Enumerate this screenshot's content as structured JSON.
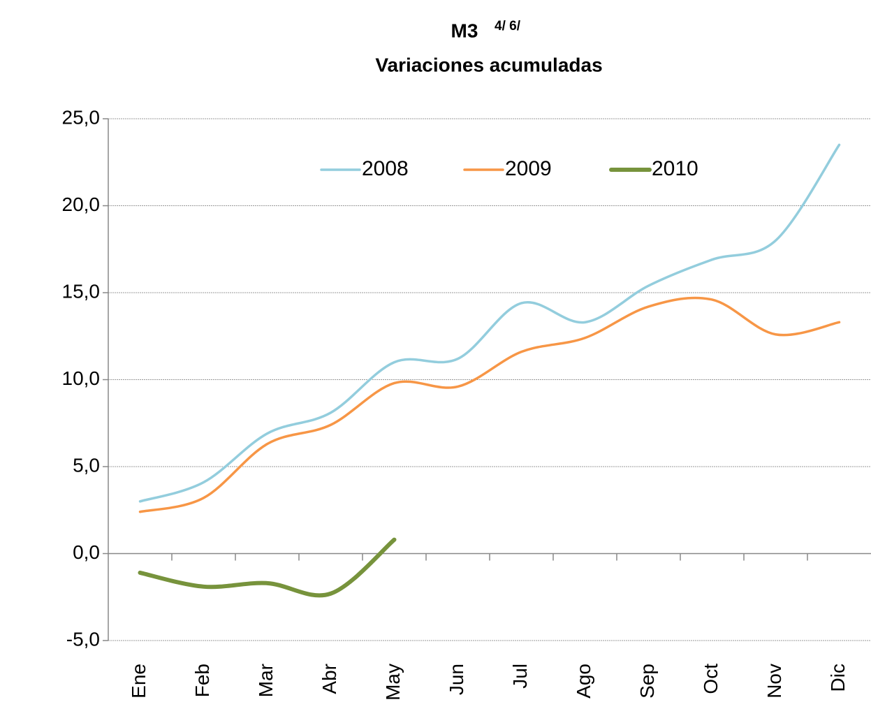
{
  "chart_data": {
    "type": "line",
    "title": "M3",
    "title_note": "4/ 6/",
    "subtitle": "Variaciones acumuladas",
    "categories": [
      "Ene",
      "Feb",
      "Mar",
      "Abr",
      "May",
      "Jun",
      "Jul",
      "Ago",
      "Sep",
      "Oct",
      "Nov",
      "Dic"
    ],
    "series": [
      {
        "name": "2008",
        "color": "#93cddd",
        "values": [
          3.0,
          4.1,
          6.9,
          8.1,
          11.0,
          11.2,
          14.4,
          13.3,
          15.4,
          16.9,
          18.0,
          23.5
        ]
      },
      {
        "name": "2009",
        "color": "#f79646",
        "values": [
          2.4,
          3.2,
          6.3,
          7.4,
          9.8,
          9.6,
          11.6,
          12.4,
          14.2,
          14.6,
          12.6,
          13.3
        ]
      },
      {
        "name": "2010",
        "color": "#77933c",
        "values": [
          -1.1,
          -1.9,
          -1.7,
          -2.3,
          0.8,
          null,
          null,
          null,
          null,
          null,
          null,
          null
        ]
      }
    ],
    "ylim": [
      -5,
      25
    ],
    "yticks": [
      {
        "value": -5,
        "label": "-5,0"
      },
      {
        "value": 0,
        "label": "0,0"
      },
      {
        "value": 5,
        "label": "5,0"
      },
      {
        "value": 10,
        "label": "10,0"
      },
      {
        "value": 15,
        "label": "15,0"
      },
      {
        "value": 20,
        "label": "20,0"
      },
      {
        "value": 25,
        "label": "25,0"
      }
    ],
    "grid": true,
    "legend": "top"
  }
}
